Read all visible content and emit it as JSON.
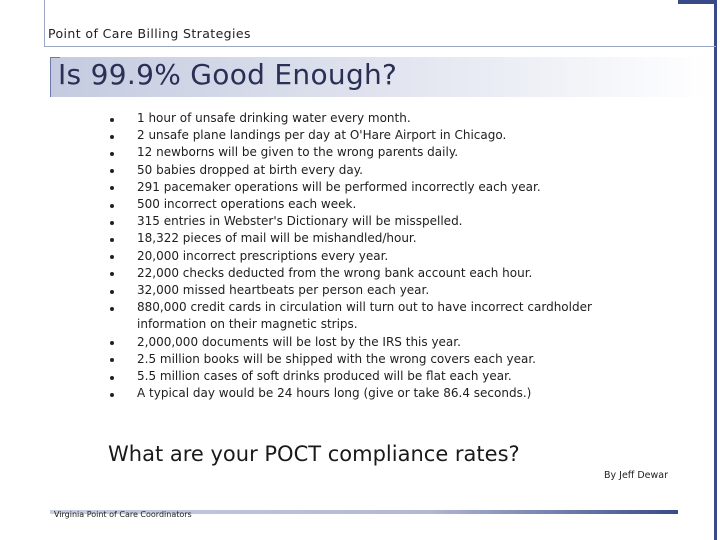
{
  "header": {
    "title": "Point of Care Billing Strategies"
  },
  "slide": {
    "title": "Is 99.9%  Good Enough?",
    "bullets": [
      "1 hour of unsafe drinking water every month.",
      "2 unsafe plane landings per day at O'Hare Airport in Chicago.",
      "12 newborns will be given to the wrong parents daily.",
      "50 babies dropped at birth every day.",
      "291 pacemaker operations will be performed incorrectly each year.",
      "500 incorrect operations each week.",
      "315 entries in Webster's Dictionary will be misspelled.",
      "18,322 pieces of mail will be mishandled/hour.",
      "20,000 incorrect prescriptions every year.",
      "22,000 checks deducted from the wrong bank account each hour.",
      "32,000 missed heartbeats per person each year.",
      "880,000 credit cards in circulation will turn out to have incorrect cardholder information on their magnetic strips.",
      "2,000,000 documents will be lost by the IRS this year.",
      "2.5 million books will be shipped with the wrong covers each year.",
      "5.5 million cases of soft drinks produced will be flat each year.",
      "A typical day would be 24 hours long (give or take 86.4 seconds.)"
    ],
    "question": "What are your POCT compliance rates?",
    "credit": "By Jeff Dewar"
  },
  "footer": {
    "text": "Virginia Point of Care Coordinators"
  },
  "colors": {
    "accent": "#3a4a88",
    "title_text": "#2a2f55",
    "band_start": "#c4cbe0"
  }
}
